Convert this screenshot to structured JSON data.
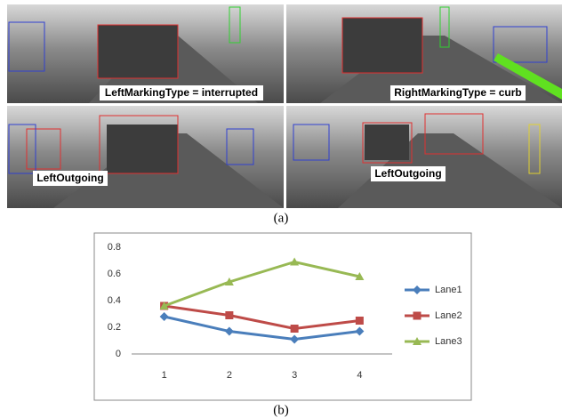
{
  "figure_a": {
    "panels": [
      {
        "label": "LeftMarkingType = interrupted"
      },
      {
        "label": "RightMarkingType = curb"
      },
      {
        "label": "LeftOutgoing"
      },
      {
        "label": "LeftOutgoing"
      }
    ],
    "caption": "(a)"
  },
  "chart_data": {
    "type": "line",
    "categories": [
      "1",
      "2",
      "3",
      "4"
    ],
    "series": [
      {
        "name": "Lane1",
        "color": "#4a7ebb",
        "marker": "diamond",
        "values": [
          0.28,
          0.17,
          0.11,
          0.17
        ]
      },
      {
        "name": "Lane2",
        "color": "#be4b48",
        "marker": "square",
        "values": [
          0.36,
          0.29,
          0.19,
          0.25
        ]
      },
      {
        "name": "Lane3",
        "color": "#98b954",
        "marker": "triangle",
        "values": [
          0.36,
          0.54,
          0.69,
          0.58
        ]
      }
    ],
    "ylim": [
      0,
      0.8
    ],
    "yticks": [
      0,
      0.2,
      0.4,
      0.6,
      0.8
    ],
    "grid": false,
    "legend": "right"
  },
  "figure_b": {
    "caption": "(b)"
  }
}
